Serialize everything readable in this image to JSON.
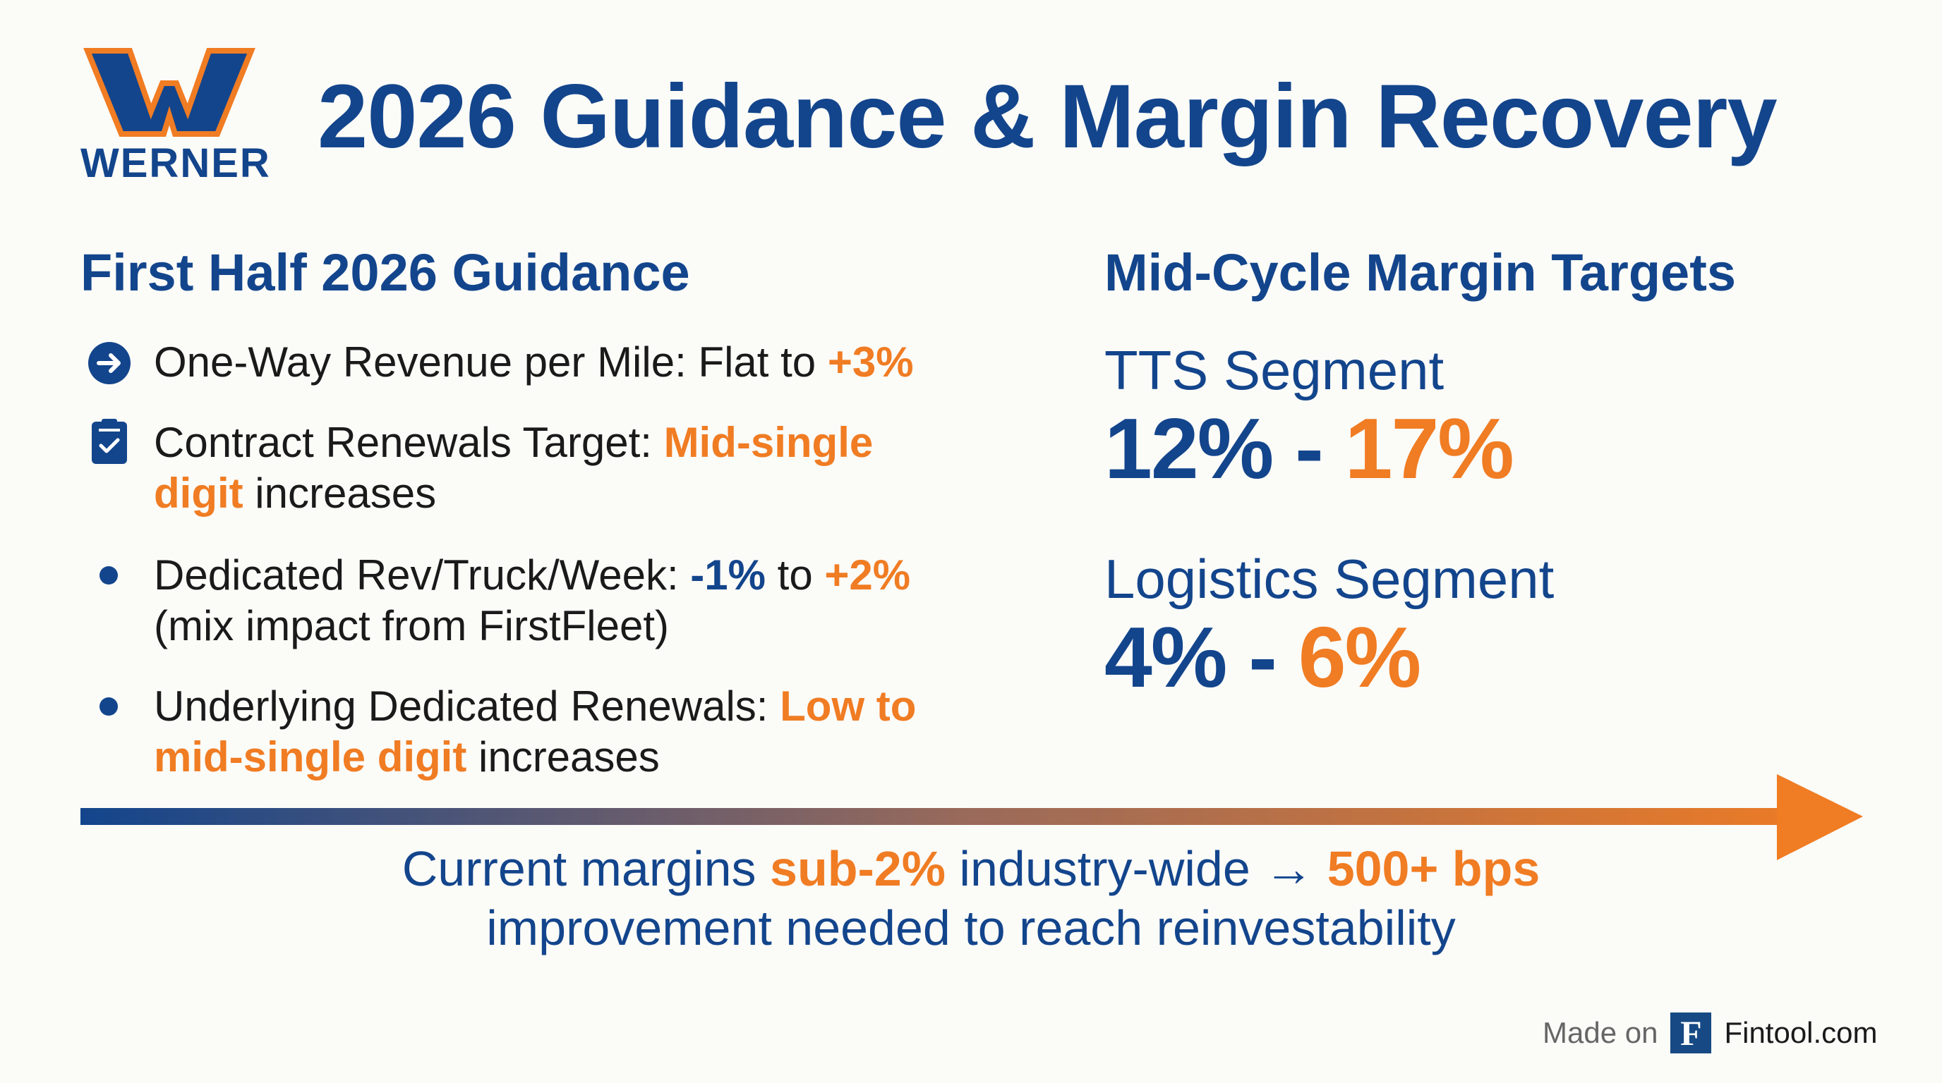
{
  "brand": {
    "logo_text": "WERNER",
    "blue": "#13458c",
    "orange": "#f07c23"
  },
  "title": "2026 Guidance & Margin Recovery",
  "left": {
    "heading": "First Half 2026 Guidance",
    "items": [
      {
        "icon": "arrow-circle-icon",
        "parts": [
          "One-Way Revenue per Mile: Flat to ",
          "+3%"
        ]
      },
      {
        "icon": "clipboard-check-icon",
        "parts": [
          "Contract Renewals Target: ",
          "Mid-single digit",
          " increases"
        ]
      },
      {
        "icon": "dot-icon",
        "parts": [
          "Dedicated Rev/Truck/Week: ",
          "-1%",
          " to ",
          "+2%",
          " (mix impact from FirstFleet)"
        ]
      },
      {
        "icon": "dot-icon",
        "parts": [
          "Underlying Dedicated Renewals: ",
          "Low to mid-single digit",
          " increases"
        ]
      }
    ]
  },
  "right": {
    "heading": "Mid-Cycle Margin Targets",
    "segments": [
      {
        "label": "TTS Segment",
        "low": "12%",
        "sep": " - ",
        "high": "17%"
      },
      {
        "label": "Logistics Segment",
        "low": "4%",
        "sep": " - ",
        "high": "6%"
      }
    ]
  },
  "bottom": {
    "line1": [
      "Current margins ",
      "sub-2%",
      " industry-wide → ",
      "500+ bps"
    ],
    "line2": "improvement needed to reach reinvestability"
  },
  "footer": {
    "made_on": "Made on",
    "logo_letter": "F",
    "site": "Fintool.com"
  }
}
